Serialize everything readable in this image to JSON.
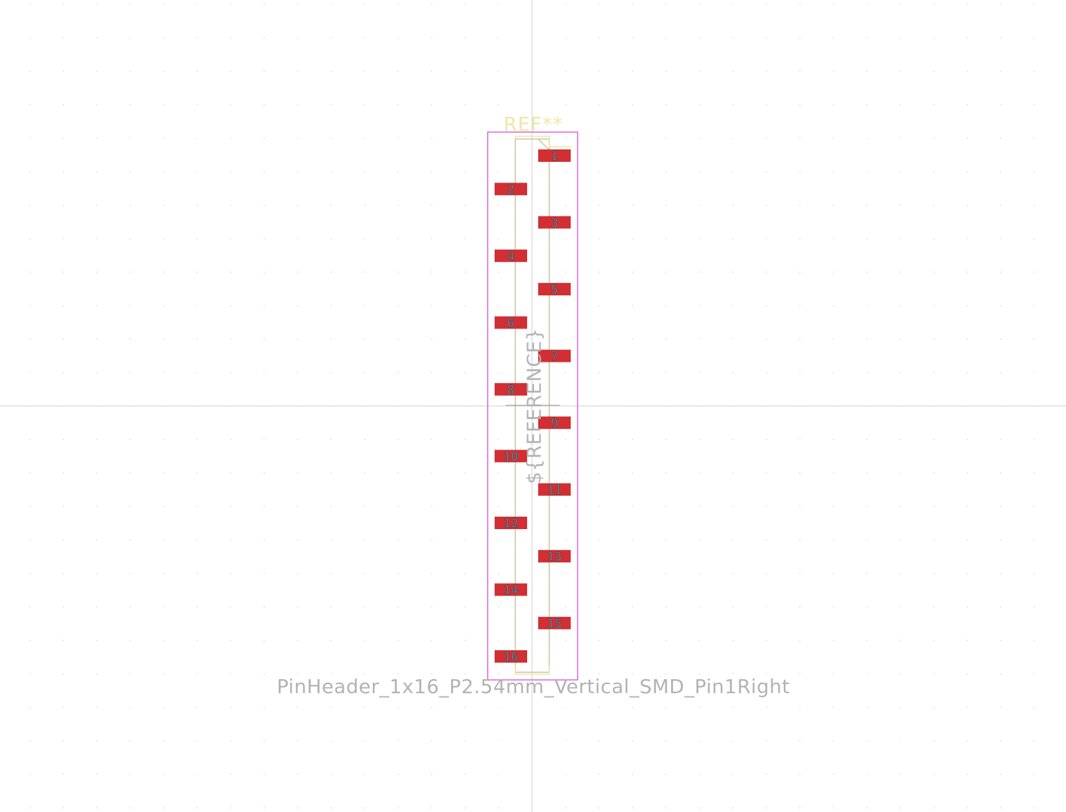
{
  "footprint": {
    "reference": "REF**",
    "value": "PinHeader_1x16_P2.54mm_Vertical_SMD_Pin1Right",
    "fab_reference": "${REFERENCE}"
  },
  "pads": [
    {
      "number": "1",
      "column": "right"
    },
    {
      "number": "2",
      "column": "left"
    },
    {
      "number": "3",
      "column": "right"
    },
    {
      "number": "4",
      "column": "left"
    },
    {
      "number": "5",
      "column": "right"
    },
    {
      "number": "6",
      "column": "left"
    },
    {
      "number": "7",
      "column": "right"
    },
    {
      "number": "8",
      "column": "left"
    },
    {
      "number": "9",
      "column": "right"
    },
    {
      "number": "10",
      "column": "left"
    },
    {
      "number": "11",
      "column": "right"
    },
    {
      "number": "12",
      "column": "left"
    },
    {
      "number": "13",
      "column": "right"
    },
    {
      "number": "14",
      "column": "left"
    },
    {
      "number": "15",
      "column": "right"
    },
    {
      "number": "16",
      "column": "left"
    }
  ],
  "colors": {
    "background": "#ffffff",
    "grid_dot": "#c4c4c4",
    "crosshair": "#c9c9c9",
    "pad_fill": "#d12f33",
    "courtyard": "#d23bd2",
    "silkscreen": "#f2e6a6",
    "fab_outline": "#c9c3a0"
  }
}
